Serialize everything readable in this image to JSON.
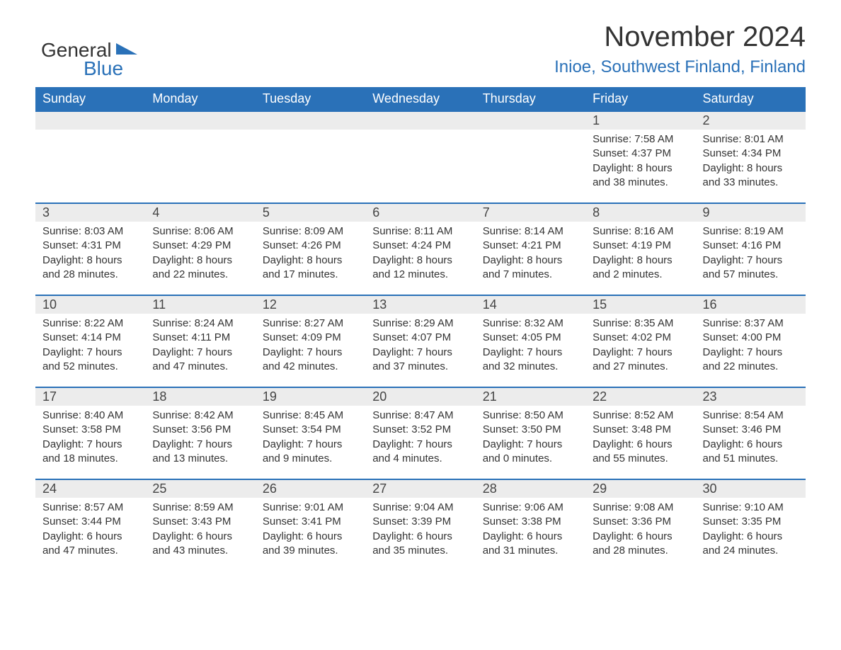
{
  "logo": {
    "text_general": "General",
    "text_blue": "Blue",
    "triangle_color": "#2a71b8"
  },
  "header": {
    "title": "November 2024",
    "location": "Inioe, Southwest Finland, Finland"
  },
  "calendar": {
    "type": "table",
    "background_color": "#ffffff",
    "header_bg": "#2a71b8",
    "header_text_color": "#ffffff",
    "daynum_bg": "#ececec",
    "row_border_color": "#2a71b8",
    "text_color": "#333333",
    "columns": [
      "Sunday",
      "Monday",
      "Tuesday",
      "Wednesday",
      "Thursday",
      "Friday",
      "Saturday"
    ],
    "weeks": [
      [
        {
          "empty": true
        },
        {
          "empty": true
        },
        {
          "empty": true
        },
        {
          "empty": true
        },
        {
          "empty": true
        },
        {
          "day": "1",
          "sunrise": "Sunrise: 7:58 AM",
          "sunset": "Sunset: 4:37 PM",
          "daylight1": "Daylight: 8 hours",
          "daylight2": "and 38 minutes."
        },
        {
          "day": "2",
          "sunrise": "Sunrise: 8:01 AM",
          "sunset": "Sunset: 4:34 PM",
          "daylight1": "Daylight: 8 hours",
          "daylight2": "and 33 minutes."
        }
      ],
      [
        {
          "day": "3",
          "sunrise": "Sunrise: 8:03 AM",
          "sunset": "Sunset: 4:31 PM",
          "daylight1": "Daylight: 8 hours",
          "daylight2": "and 28 minutes."
        },
        {
          "day": "4",
          "sunrise": "Sunrise: 8:06 AM",
          "sunset": "Sunset: 4:29 PM",
          "daylight1": "Daylight: 8 hours",
          "daylight2": "and 22 minutes."
        },
        {
          "day": "5",
          "sunrise": "Sunrise: 8:09 AM",
          "sunset": "Sunset: 4:26 PM",
          "daylight1": "Daylight: 8 hours",
          "daylight2": "and 17 minutes."
        },
        {
          "day": "6",
          "sunrise": "Sunrise: 8:11 AM",
          "sunset": "Sunset: 4:24 PM",
          "daylight1": "Daylight: 8 hours",
          "daylight2": "and 12 minutes."
        },
        {
          "day": "7",
          "sunrise": "Sunrise: 8:14 AM",
          "sunset": "Sunset: 4:21 PM",
          "daylight1": "Daylight: 8 hours",
          "daylight2": "and 7 minutes."
        },
        {
          "day": "8",
          "sunrise": "Sunrise: 8:16 AM",
          "sunset": "Sunset: 4:19 PM",
          "daylight1": "Daylight: 8 hours",
          "daylight2": "and 2 minutes."
        },
        {
          "day": "9",
          "sunrise": "Sunrise: 8:19 AM",
          "sunset": "Sunset: 4:16 PM",
          "daylight1": "Daylight: 7 hours",
          "daylight2": "and 57 minutes."
        }
      ],
      [
        {
          "day": "10",
          "sunrise": "Sunrise: 8:22 AM",
          "sunset": "Sunset: 4:14 PM",
          "daylight1": "Daylight: 7 hours",
          "daylight2": "and 52 minutes."
        },
        {
          "day": "11",
          "sunrise": "Sunrise: 8:24 AM",
          "sunset": "Sunset: 4:11 PM",
          "daylight1": "Daylight: 7 hours",
          "daylight2": "and 47 minutes."
        },
        {
          "day": "12",
          "sunrise": "Sunrise: 8:27 AM",
          "sunset": "Sunset: 4:09 PM",
          "daylight1": "Daylight: 7 hours",
          "daylight2": "and 42 minutes."
        },
        {
          "day": "13",
          "sunrise": "Sunrise: 8:29 AM",
          "sunset": "Sunset: 4:07 PM",
          "daylight1": "Daylight: 7 hours",
          "daylight2": "and 37 minutes."
        },
        {
          "day": "14",
          "sunrise": "Sunrise: 8:32 AM",
          "sunset": "Sunset: 4:05 PM",
          "daylight1": "Daylight: 7 hours",
          "daylight2": "and 32 minutes."
        },
        {
          "day": "15",
          "sunrise": "Sunrise: 8:35 AM",
          "sunset": "Sunset: 4:02 PM",
          "daylight1": "Daylight: 7 hours",
          "daylight2": "and 27 minutes."
        },
        {
          "day": "16",
          "sunrise": "Sunrise: 8:37 AM",
          "sunset": "Sunset: 4:00 PM",
          "daylight1": "Daylight: 7 hours",
          "daylight2": "and 22 minutes."
        }
      ],
      [
        {
          "day": "17",
          "sunrise": "Sunrise: 8:40 AM",
          "sunset": "Sunset: 3:58 PM",
          "daylight1": "Daylight: 7 hours",
          "daylight2": "and 18 minutes."
        },
        {
          "day": "18",
          "sunrise": "Sunrise: 8:42 AM",
          "sunset": "Sunset: 3:56 PM",
          "daylight1": "Daylight: 7 hours",
          "daylight2": "and 13 minutes."
        },
        {
          "day": "19",
          "sunrise": "Sunrise: 8:45 AM",
          "sunset": "Sunset: 3:54 PM",
          "daylight1": "Daylight: 7 hours",
          "daylight2": "and 9 minutes."
        },
        {
          "day": "20",
          "sunrise": "Sunrise: 8:47 AM",
          "sunset": "Sunset: 3:52 PM",
          "daylight1": "Daylight: 7 hours",
          "daylight2": "and 4 minutes."
        },
        {
          "day": "21",
          "sunrise": "Sunrise: 8:50 AM",
          "sunset": "Sunset: 3:50 PM",
          "daylight1": "Daylight: 7 hours",
          "daylight2": "and 0 minutes."
        },
        {
          "day": "22",
          "sunrise": "Sunrise: 8:52 AM",
          "sunset": "Sunset: 3:48 PM",
          "daylight1": "Daylight: 6 hours",
          "daylight2": "and 55 minutes."
        },
        {
          "day": "23",
          "sunrise": "Sunrise: 8:54 AM",
          "sunset": "Sunset: 3:46 PM",
          "daylight1": "Daylight: 6 hours",
          "daylight2": "and 51 minutes."
        }
      ],
      [
        {
          "day": "24",
          "sunrise": "Sunrise: 8:57 AM",
          "sunset": "Sunset: 3:44 PM",
          "daylight1": "Daylight: 6 hours",
          "daylight2": "and 47 minutes."
        },
        {
          "day": "25",
          "sunrise": "Sunrise: 8:59 AM",
          "sunset": "Sunset: 3:43 PM",
          "daylight1": "Daylight: 6 hours",
          "daylight2": "and 43 minutes."
        },
        {
          "day": "26",
          "sunrise": "Sunrise: 9:01 AM",
          "sunset": "Sunset: 3:41 PM",
          "daylight1": "Daylight: 6 hours",
          "daylight2": "and 39 minutes."
        },
        {
          "day": "27",
          "sunrise": "Sunrise: 9:04 AM",
          "sunset": "Sunset: 3:39 PM",
          "daylight1": "Daylight: 6 hours",
          "daylight2": "and 35 minutes."
        },
        {
          "day": "28",
          "sunrise": "Sunrise: 9:06 AM",
          "sunset": "Sunset: 3:38 PM",
          "daylight1": "Daylight: 6 hours",
          "daylight2": "and 31 minutes."
        },
        {
          "day": "29",
          "sunrise": "Sunrise: 9:08 AM",
          "sunset": "Sunset: 3:36 PM",
          "daylight1": "Daylight: 6 hours",
          "daylight2": "and 28 minutes."
        },
        {
          "day": "30",
          "sunrise": "Sunrise: 9:10 AM",
          "sunset": "Sunset: 3:35 PM",
          "daylight1": "Daylight: 6 hours",
          "daylight2": "and 24 minutes."
        }
      ]
    ]
  }
}
